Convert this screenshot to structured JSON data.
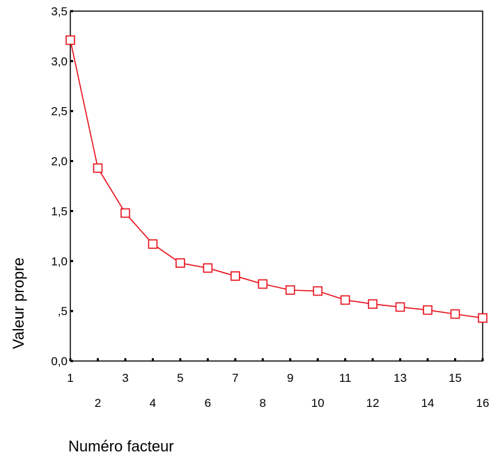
{
  "chart_data": {
    "type": "line",
    "xlabel": "Numéro facteur",
    "ylabel": "Valeur propre",
    "x": [
      1,
      2,
      3,
      4,
      5,
      6,
      7,
      8,
      9,
      10,
      11,
      12,
      13,
      14,
      15,
      16
    ],
    "series": [
      {
        "values": [
          3.21,
          1.93,
          1.48,
          1.17,
          0.98,
          0.93,
          0.85,
          0.77,
          0.71,
          0.7,
          0.61,
          0.57,
          0.54,
          0.51,
          0.47,
          0.43
        ]
      }
    ],
    "ylim": [
      0,
      3.5
    ],
    "xlim": [
      1,
      16
    ],
    "yticks": [
      0,
      0.5,
      1.0,
      1.5,
      2.0,
      2.5,
      3.0,
      3.5
    ],
    "ytick_labels": [
      "0,0",
      ",5",
      "1,0",
      "1,5",
      "2,0",
      "2,5",
      "3,0",
      "3,5"
    ],
    "xtick_labels": [
      "1",
      "2",
      "3",
      "4",
      "5",
      "6",
      "7",
      "8",
      "9",
      "10",
      "11",
      "12",
      "13",
      "14",
      "15",
      "16"
    ],
    "marker": "square",
    "line_color": "#e8121c",
    "grid": false,
    "legend": "none"
  }
}
